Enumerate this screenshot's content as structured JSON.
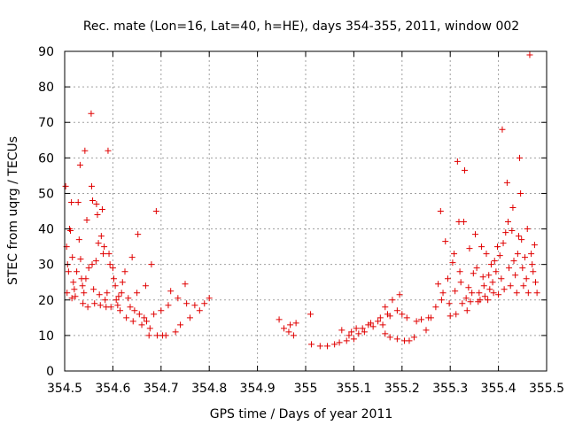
{
  "chart_data": {
    "type": "scatter",
    "title": "Rec. mate (Lon=16, Lat=40, h=HE), days 354-355, 2011, window 002",
    "xlabel": "GPS time / Days of year 2011",
    "ylabel": "STEC from uqrg / TECUs",
    "xlim": [
      354.5,
      355.5
    ],
    "ylim": [
      0,
      90
    ],
    "xticks": [
      "354.5",
      "354.6",
      "354.7",
      "354.8",
      "354.9",
      "355",
      "355.1",
      "355.2",
      "355.3",
      "355.4",
      "355.5"
    ],
    "yticks": [
      "0",
      "10",
      "20",
      "30",
      "40",
      "50",
      "60",
      "70",
      "80",
      "90"
    ],
    "grid": true,
    "marker": "+",
    "color": "#e00000",
    "points": [
      [
        354.502,
        52
      ],
      [
        354.504,
        35
      ],
      [
        354.506,
        30
      ],
      [
        354.508,
        28
      ],
      [
        354.505,
        22
      ],
      [
        354.51,
        40
      ],
      [
        354.512,
        39.5
      ],
      [
        354.514,
        47.5
      ],
      [
        354.515,
        20.5
      ],
      [
        354.516,
        32
      ],
      [
        354.518,
        25
      ],
      [
        354.52,
        23
      ],
      [
        354.522,
        21
      ],
      [
        354.525,
        28
      ],
      [
        354.528,
        47.5
      ],
      [
        354.53,
        37
      ],
      [
        354.532,
        58
      ],
      [
        354.533,
        31.5
      ],
      [
        354.535,
        26
      ],
      [
        354.537,
        24
      ],
      [
        354.538,
        19
      ],
      [
        354.54,
        22
      ],
      [
        354.542,
        62
      ],
      [
        354.544,
        26
      ],
      [
        354.546,
        42.5
      ],
      [
        354.548,
        18
      ],
      [
        354.55,
        29
      ],
      [
        354.555,
        72.5
      ],
      [
        354.556,
        52
      ],
      [
        354.557,
        30
      ],
      [
        354.558,
        48
      ],
      [
        354.56,
        23
      ],
      [
        354.562,
        19
      ],
      [
        354.565,
        31
      ],
      [
        354.566,
        47
      ],
      [
        354.568,
        44
      ],
      [
        354.57,
        36
      ],
      [
        354.572,
        21.5
      ],
      [
        354.574,
        18.5
      ],
      [
        354.576,
        38
      ],
      [
        354.578,
        45.5
      ],
      [
        354.58,
        33
      ],
      [
        354.582,
        35
      ],
      [
        354.584,
        20
      ],
      [
        354.586,
        18
      ],
      [
        354.588,
        22
      ],
      [
        354.59,
        62
      ],
      [
        354.592,
        33
      ],
      [
        354.594,
        30
      ],
      [
        354.596,
        18
      ],
      [
        354.6,
        29
      ],
      [
        354.602,
        26
      ],
      [
        354.605,
        24
      ],
      [
        354.607,
        20
      ],
      [
        354.61,
        18.5
      ],
      [
        354.612,
        21
      ],
      [
        354.615,
        17
      ],
      [
        354.618,
        22
      ],
      [
        354.62,
        25
      ],
      [
        354.625,
        28
      ],
      [
        354.628,
        15
      ],
      [
        354.632,
        20.5
      ],
      [
        354.636,
        18
      ],
      [
        354.64,
        32
      ],
      [
        354.642,
        14
      ],
      [
        354.645,
        17
      ],
      [
        354.65,
        22
      ],
      [
        354.652,
        38.5
      ],
      [
        354.655,
        16
      ],
      [
        354.66,
        13
      ],
      [
        354.665,
        15
      ],
      [
        354.668,
        24
      ],
      [
        354.67,
        14
      ],
      [
        354.675,
        10
      ],
      [
        354.677,
        12
      ],
      [
        354.68,
        30
      ],
      [
        354.685,
        16
      ],
      [
        354.69,
        45
      ],
      [
        354.692,
        10
      ],
      [
        354.7,
        17
      ],
      [
        354.703,
        10
      ],
      [
        354.71,
        10
      ],
      [
        354.715,
        18.5
      ],
      [
        354.72,
        22.5
      ],
      [
        354.73,
        11
      ],
      [
        354.735,
        20.5
      ],
      [
        354.74,
        13
      ],
      [
        354.75,
        24.5
      ],
      [
        354.753,
        19
      ],
      [
        354.76,
        15
      ],
      [
        354.77,
        18.5
      ],
      [
        354.78,
        17
      ],
      [
        354.79,
        19
      ],
      [
        354.8,
        20.5
      ],
      [
        354.945,
        14.5
      ],
      [
        354.955,
        12
      ],
      [
        354.965,
        11
      ],
      [
        354.968,
        13
      ],
      [
        354.975,
        10
      ],
      [
        354.98,
        13.5
      ],
      [
        355.01,
        16
      ],
      [
        355.012,
        7.5
      ],
      [
        355.03,
        7
      ],
      [
        355.045,
        7
      ],
      [
        355.06,
        7.5
      ],
      [
        355.07,
        8
      ],
      [
        355.075,
        11.5
      ],
      [
        355.085,
        8.5
      ],
      [
        355.09,
        10
      ],
      [
        355.095,
        11
      ],
      [
        355.1,
        9
      ],
      [
        355.105,
        12
      ],
      [
        355.11,
        10.5
      ],
      [
        355.118,
        12
      ],
      [
        355.122,
        11
      ],
      [
        355.13,
        13
      ],
      [
        355.135,
        13.5
      ],
      [
        355.14,
        12.5
      ],
      [
        355.15,
        14
      ],
      [
        355.155,
        15
      ],
      [
        355.16,
        13
      ],
      [
        355.165,
        18
      ],
      [
        355.17,
        16
      ],
      [
        355.175,
        15.5
      ],
      [
        355.18,
        20
      ],
      [
        355.19,
        17
      ],
      [
        355.195,
        21.5
      ],
      [
        355.2,
        16
      ],
      [
        355.21,
        15
      ],
      [
        355.165,
        10.5
      ],
      [
        355.175,
        9.5
      ],
      [
        355.19,
        9
      ],
      [
        355.205,
        8.5
      ],
      [
        355.215,
        8.5
      ],
      [
        355.225,
        9.5
      ],
      [
        355.23,
        14
      ],
      [
        355.24,
        14.5
      ],
      [
        355.25,
        11.5
      ],
      [
        355.255,
        15
      ],
      [
        355.26,
        15
      ],
      [
        355.27,
        18
      ],
      [
        355.275,
        24.5
      ],
      [
        355.28,
        45
      ],
      [
        355.282,
        20
      ],
      [
        355.285,
        22
      ],
      [
        355.29,
        36.5
      ],
      [
        355.295,
        26
      ],
      [
        355.298,
        19
      ],
      [
        355.3,
        15.5
      ],
      [
        355.305,
        30.5
      ],
      [
        355.308,
        33
      ],
      [
        355.31,
        22.5
      ],
      [
        355.312,
        16
      ],
      [
        355.315,
        59
      ],
      [
        355.318,
        42
      ],
      [
        355.32,
        28
      ],
      [
        355.322,
        25
      ],
      [
        355.325,
        19
      ],
      [
        355.328,
        42
      ],
      [
        355.33,
        56.5
      ],
      [
        355.333,
        20.5
      ],
      [
        355.335,
        17
      ],
      [
        355.338,
        23.5
      ],
      [
        355.34,
        34.5
      ],
      [
        355.342,
        19.5
      ],
      [
        355.345,
        22
      ],
      [
        355.348,
        27.5
      ],
      [
        355.352,
        38.5
      ],
      [
        355.355,
        29
      ],
      [
        355.358,
        19.5
      ],
      [
        355.36,
        22
      ],
      [
        355.362,
        20
      ],
      [
        355.365,
        35
      ],
      [
        355.368,
        26.5
      ],
      [
        355.37,
        24
      ],
      [
        355.372,
        21
      ],
      [
        355.375,
        33
      ],
      [
        355.378,
        20
      ],
      [
        355.38,
        27
      ],
      [
        355.382,
        23
      ],
      [
        355.385,
        30
      ],
      [
        355.388,
        25
      ],
      [
        355.39,
        22
      ],
      [
        355.392,
        31
      ],
      [
        355.395,
        28
      ],
      [
        355.398,
        35
      ],
      [
        355.4,
        21.5
      ],
      [
        355.403,
        32.5
      ],
      [
        355.406,
        26
      ],
      [
        355.408,
        68
      ],
      [
        355.41,
        36
      ],
      [
        355.412,
        23
      ],
      [
        355.415,
        39
      ],
      [
        355.418,
        53
      ],
      [
        355.42,
        42
      ],
      [
        355.422,
        29
      ],
      [
        355.425,
        24
      ],
      [
        355.428,
        39.5
      ],
      [
        355.43,
        46
      ],
      [
        355.432,
        31
      ],
      [
        355.435,
        27
      ],
      [
        355.438,
        22
      ],
      [
        355.44,
        33
      ],
      [
        355.442,
        38
      ],
      [
        355.444,
        60
      ],
      [
        355.446,
        50
      ],
      [
        355.448,
        37
      ],
      [
        355.45,
        29
      ],
      [
        355.452,
        24
      ],
      [
        355.455,
        32
      ],
      [
        355.458,
        26
      ],
      [
        355.46,
        40
      ],
      [
        355.462,
        22
      ],
      [
        355.465,
        89
      ],
      [
        355.468,
        33
      ],
      [
        355.47,
        30
      ],
      [
        355.472,
        28
      ],
      [
        355.475,
        35.5
      ],
      [
        355.477,
        25
      ],
      [
        355.48,
        22
      ]
    ]
  }
}
